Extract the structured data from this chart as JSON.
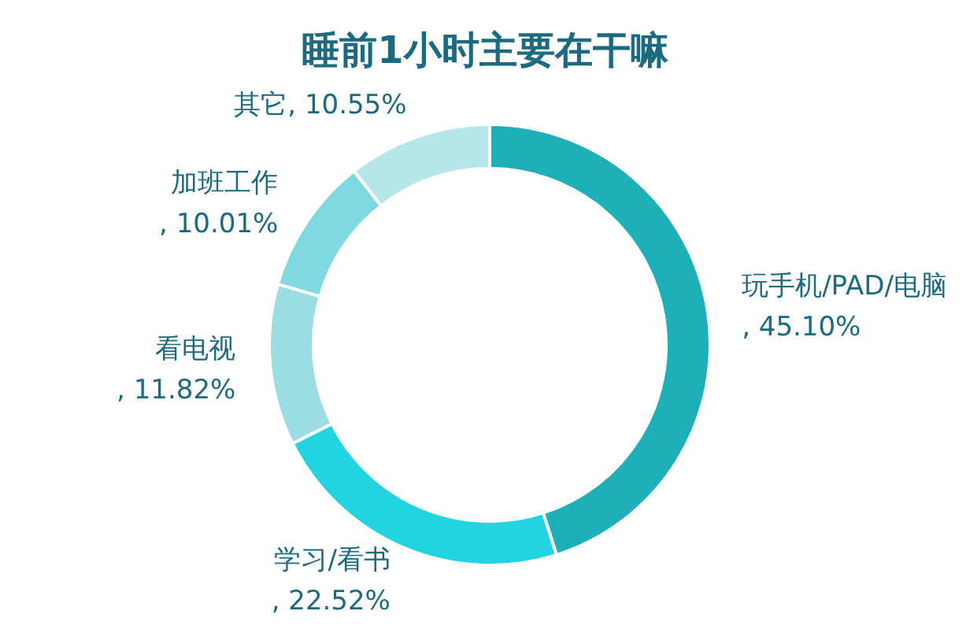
{
  "chart_data": {
    "type": "donut",
    "title": "睡前1小时主要在干嘛",
    "categories": [
      "玩手机/PAD/电脑",
      "学习/看书",
      "看电视",
      "加班工作",
      "其它"
    ],
    "values": [
      45.1,
      22.52,
      11.82,
      10.01,
      10.55
    ],
    "value_labels": [
      ", 45.10%",
      ", 22.52%",
      ", 11.82%",
      ", 10.01%",
      ", 10.55%"
    ],
    "colors": [
      "#1eb0b8",
      "#22d4e0",
      "#9cdde3",
      "#80d8e0",
      "#b4e6ea"
    ]
  }
}
